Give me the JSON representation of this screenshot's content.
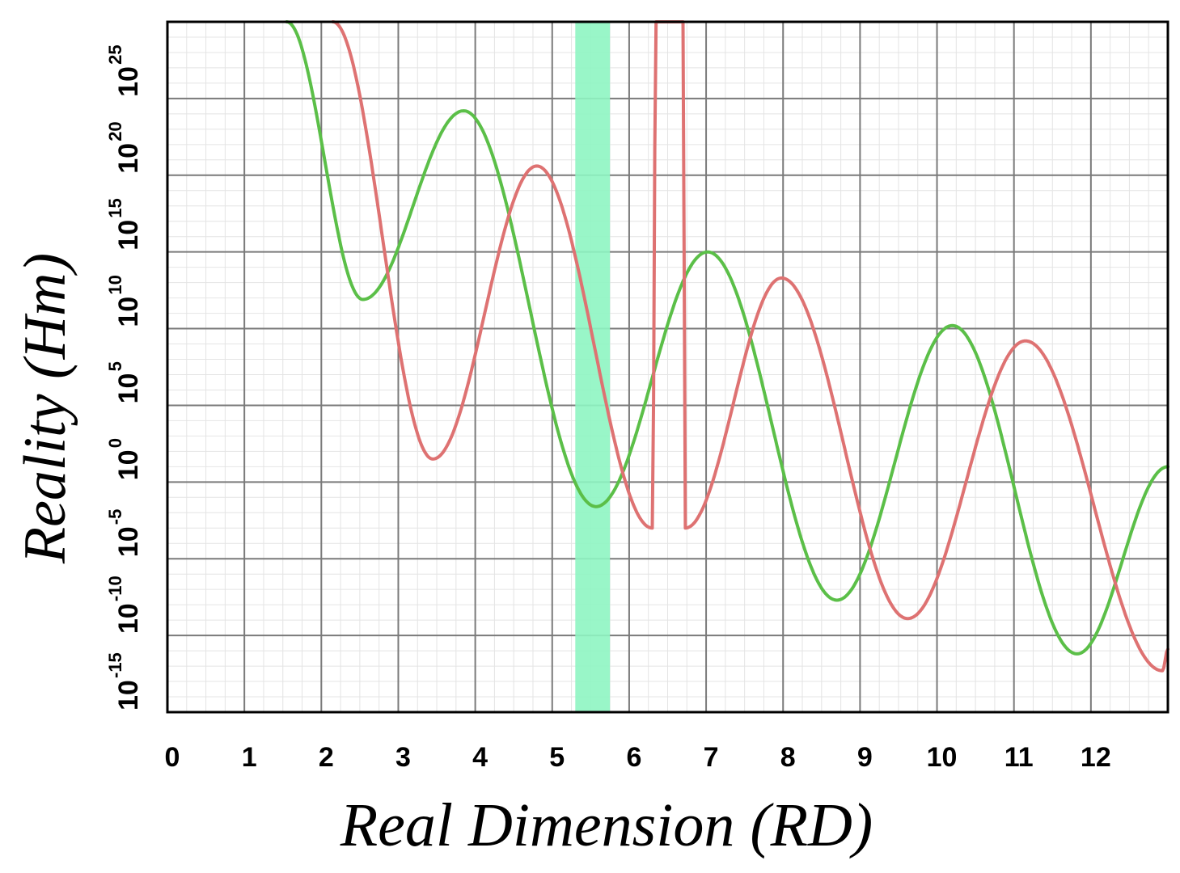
{
  "chart_data": {
    "type": "line",
    "xlabel": "Real Dimension (RD)",
    "ylabel": "Reality (Hm)",
    "xlim": [
      0,
      13
    ],
    "ylim_exponent": [
      -15,
      30
    ],
    "y_scale": "log",
    "x_ticks": [
      "0",
      "1",
      "2",
      "3",
      "4",
      "5",
      "6",
      "7",
      "8",
      "9",
      "10",
      "11",
      "12"
    ],
    "y_tick_exponents": [
      "-15",
      "-10",
      "-5",
      "0",
      "5",
      "10",
      "15",
      "20",
      "25"
    ],
    "y_tick_base": "10",
    "grid": true,
    "highlight_band": {
      "x": [
        5.3,
        5.75
      ],
      "color": "#8ef5c2"
    },
    "series": [
      {
        "color": "#5bbf48",
        "x": [
          1.55,
          2.54,
          3.85,
          5.57,
          7.02,
          8.7,
          10.2,
          11.82,
          13.0
        ],
        "log10_y": [
          30.0,
          11.9,
          24.2,
          -1.6,
          15.0,
          -7.7,
          10.2,
          -11.2,
          1.0
        ]
      },
      {
        "color": "#de7272",
        "x": [
          2.15,
          3.45,
          4.8,
          6.3,
          6.35,
          6.7,
          6.73,
          7.98,
          9.62,
          11.15,
          12.93,
          13.0
        ],
        "log10_y": [
          30.0,
          1.5,
          20.6,
          -3.0,
          30.0,
          30.0,
          -3.0,
          13.3,
          -8.9,
          9.2,
          -12.3,
          -10.9
        ]
      }
    ]
  }
}
